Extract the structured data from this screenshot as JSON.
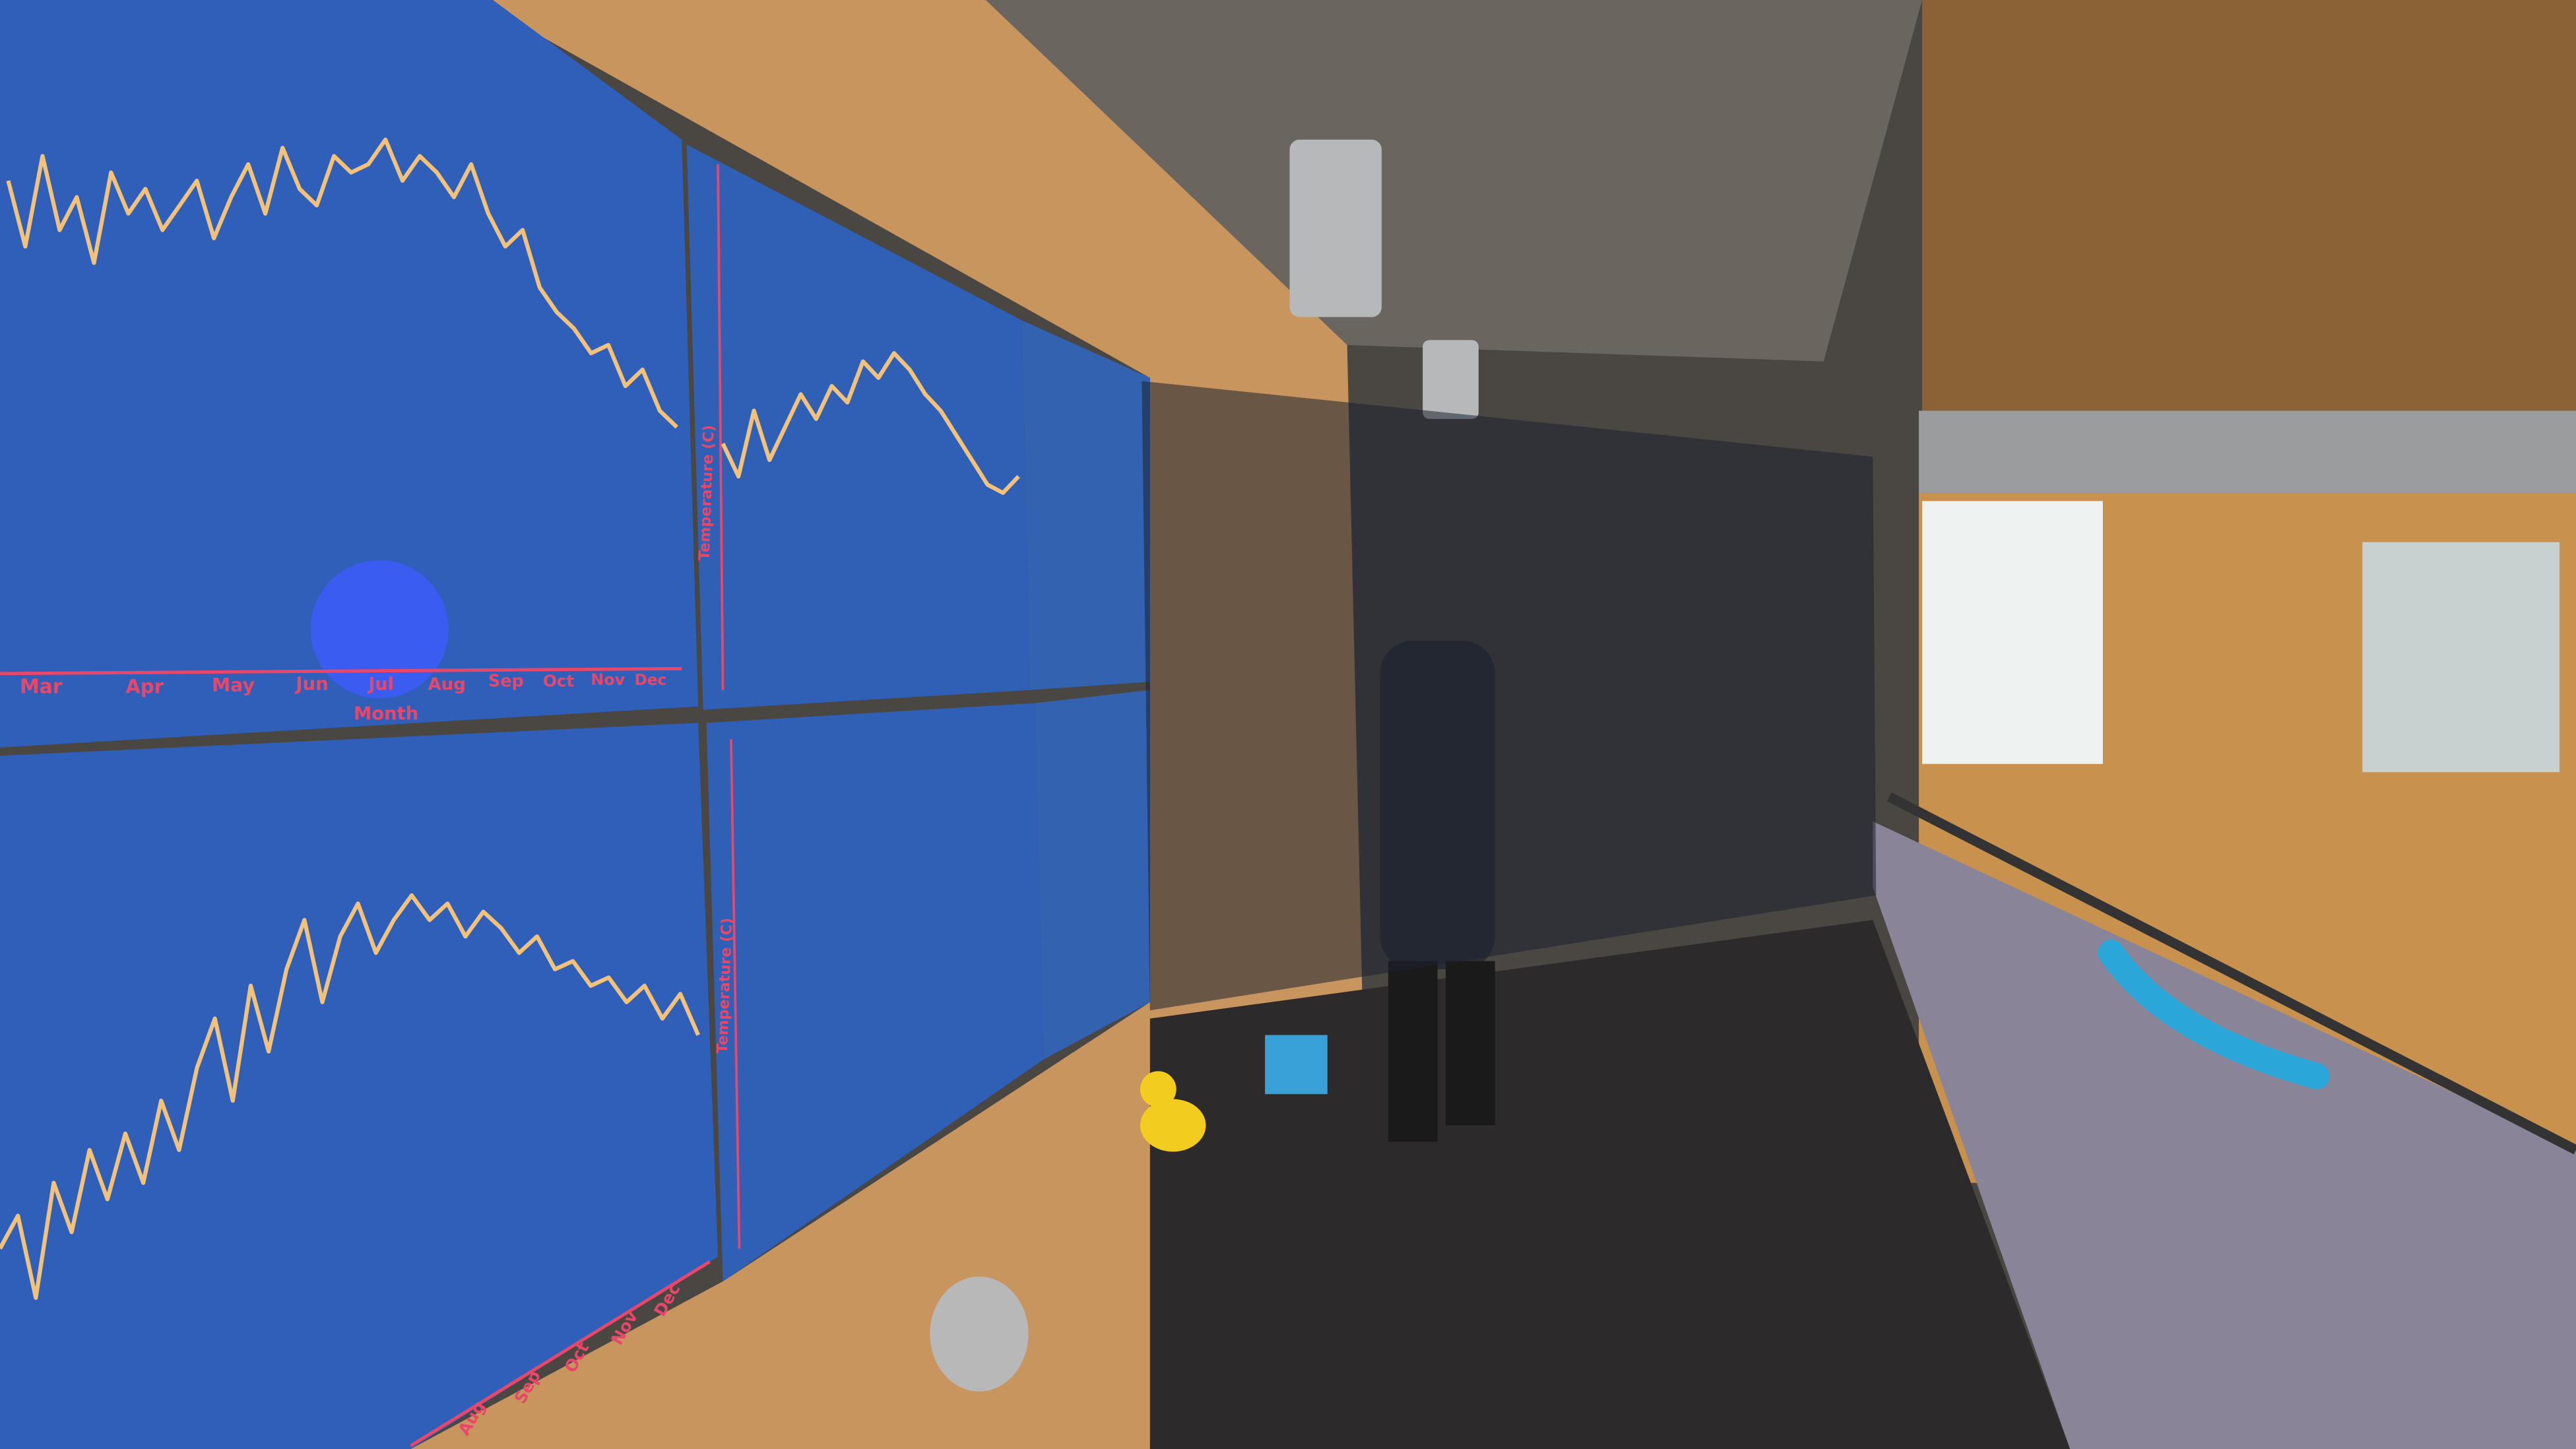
{
  "panels": [
    {
      "months": [
        "Mar",
        "Apr",
        "May",
        "Jun",
        "Jul",
        "Aug",
        "Sep",
        "Oct",
        "Nov",
        "Dec"
      ],
      "axis_label": "Month",
      "ylim": [
        0,
        300
      ],
      "trace": [
        190,
        150,
        205,
        160,
        180,
        140,
        195,
        170,
        185,
        160,
        175,
        190,
        155,
        180,
        200,
        170,
        210,
        185,
        175,
        205,
        195,
        200,
        215,
        190,
        205,
        195,
        180,
        200,
        170,
        150,
        160,
        125,
        110,
        100,
        85,
        90,
        65,
        75,
        50,
        40
      ]
    },
    {
      "months": [
        "Aug",
        "Sep",
        "Oct",
        "Nov",
        "Dec"
      ],
      "ylim": [
        0,
        400
      ],
      "trace": [
        140,
        160,
        110,
        180,
        150,
        200,
        170,
        210,
        180,
        230,
        200,
        250,
        280,
        230,
        300,
        260,
        310,
        340,
        290,
        330,
        350,
        320,
        340,
        355,
        340,
        350,
        330,
        345,
        335,
        320,
        330,
        310,
        315,
        300,
        305,
        290,
        300,
        280,
        295,
        270
      ]
    },
    {
      "axis_label": "Temperature (C)",
      "ylim": [
        0,
        120
      ],
      "trace": [
        50,
        30,
        70,
        40,
        60,
        80,
        65,
        85,
        75,
        100,
        90,
        105,
        95,
        80,
        70,
        55,
        40,
        25,
        20,
        30
      ]
    },
    {
      "axis_label": "Temperature (C)"
    }
  ]
}
